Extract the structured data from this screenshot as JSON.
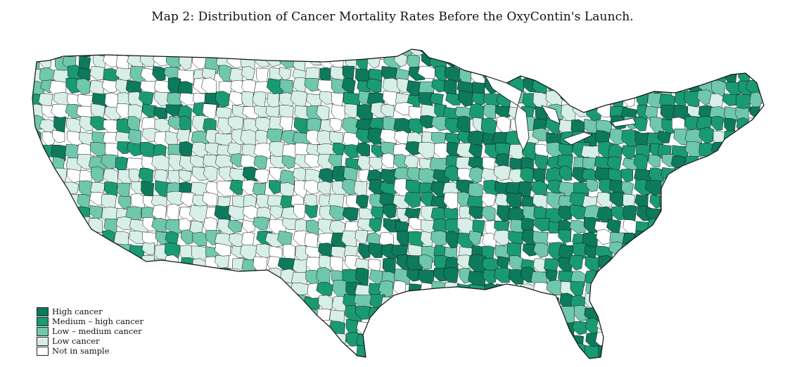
{
  "title": "Map 2: Distribution of Cancer Mortality Rates Before the OxyContin's Launch.",
  "legend": {
    "items": [
      {
        "label": "High cancer",
        "color": "#0d7a5c"
      },
      {
        "label": "Medium – high cancer",
        "color": "#1a9a72"
      },
      {
        "label": "Low – medium cancer",
        "color": "#6fc7ac"
      },
      {
        "label": "Low cancer",
        "color": "#d7efe7"
      },
      {
        "label": "Not in sample",
        "color": "#ffffff"
      }
    ]
  },
  "map": {
    "region": "contiguous-united-states",
    "unit": "commuting-zone",
    "boundary_color": "#111111"
  }
}
